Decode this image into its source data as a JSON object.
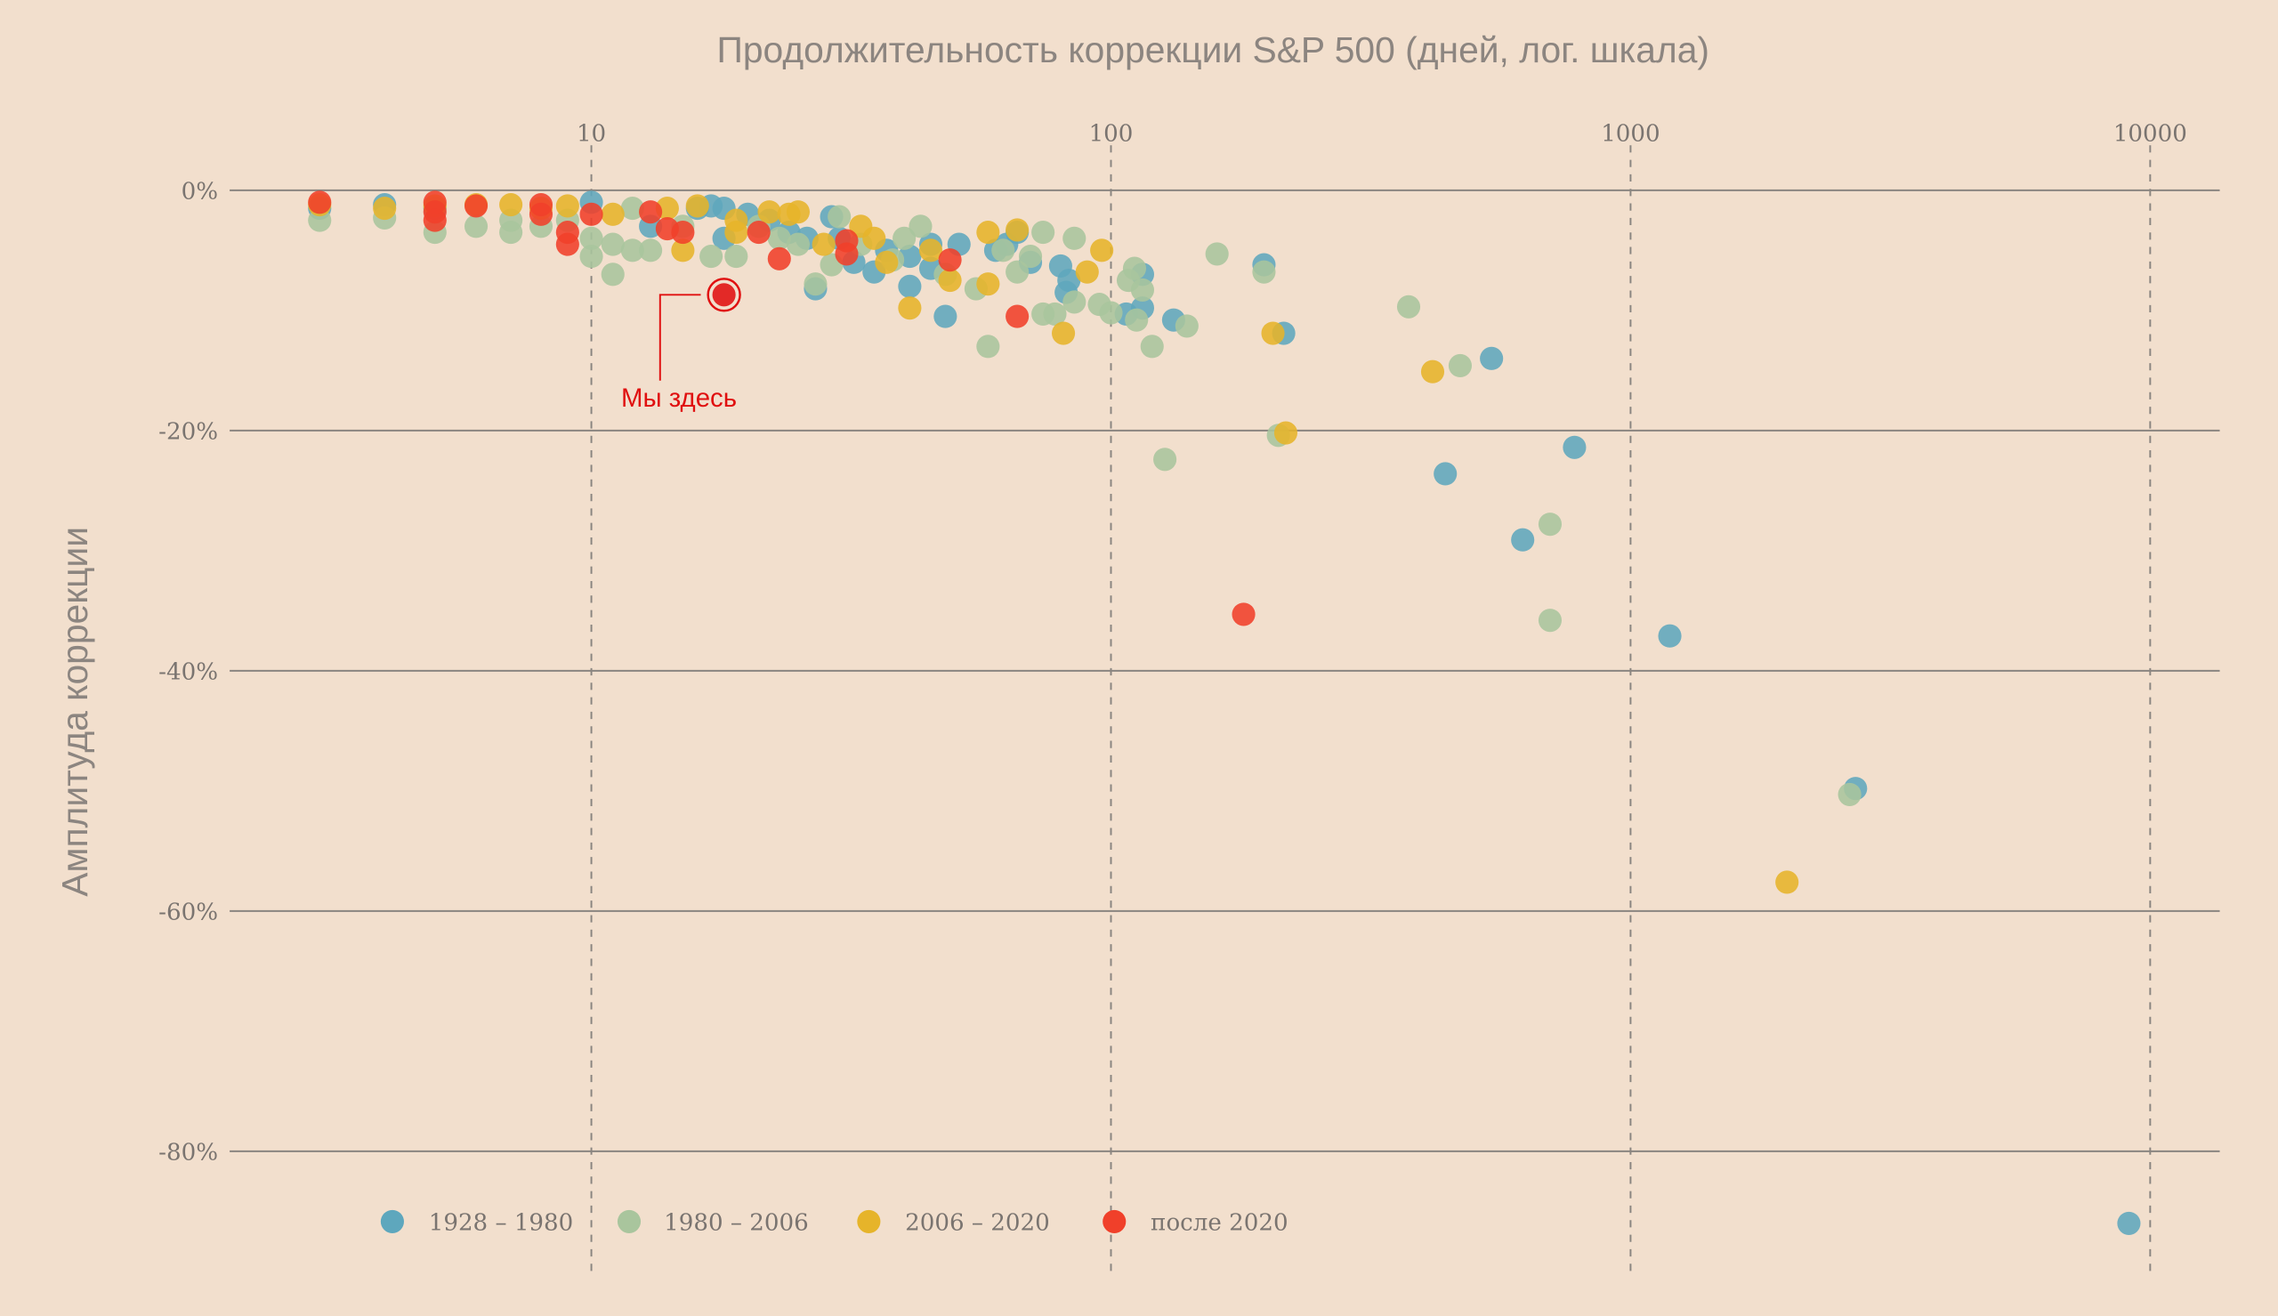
{
  "chart_data": {
    "type": "scatter",
    "title": "Продолжительность коррекции S&P 500 (дней, лог. шкала)",
    "xlabel": "Продолжительность коррекции S&P 500 (дней, лог. шкала)",
    "ylabel": "Амплитуда коррекции",
    "xscale": "log",
    "xlim": [
      2.3,
      13000
    ],
    "ylim": [
      -91,
      5
    ],
    "xticks": [
      10,
      100,
      1000,
      10000
    ],
    "xtick_labels": [
      "10",
      "100",
      "1000",
      "10000"
    ],
    "yticks": [
      0,
      -20,
      -40,
      -60,
      -80
    ],
    "ytick_labels": [
      "0%",
      "-20%",
      "-40%",
      "-60%",
      "-80%"
    ],
    "grid": true,
    "legend_position": "bottom-left",
    "series": [
      {
        "name": "1928 – 1980",
        "color": "#5ea7bd",
        "points": [
          [
            3,
            -1.5
          ],
          [
            4,
            -1.2
          ],
          [
            5,
            -1.5
          ],
          [
            10,
            -1
          ],
          [
            13,
            -3
          ],
          [
            16,
            -1.5
          ],
          [
            17,
            -1.3
          ],
          [
            18,
            -1.5
          ],
          [
            18,
            -4
          ],
          [
            20,
            -2
          ],
          [
            22,
            -2.5
          ],
          [
            24,
            -3.5
          ],
          [
            26,
            -4
          ],
          [
            27,
            -8.2
          ],
          [
            29,
            -2.2
          ],
          [
            30,
            -4
          ],
          [
            32,
            -6
          ],
          [
            35,
            -6.8
          ],
          [
            37,
            -5
          ],
          [
            41,
            -8
          ],
          [
            41,
            -5.5
          ],
          [
            45,
            -4.5
          ],
          [
            45,
            -6.5
          ],
          [
            48,
            -10.5
          ],
          [
            51,
            -4.5
          ],
          [
            60,
            -5
          ],
          [
            63,
            -4.5
          ],
          [
            66,
            -3.5
          ],
          [
            70,
            -6
          ],
          [
            80,
            -6.3
          ],
          [
            82,
            -8.5
          ],
          [
            83,
            -7.5
          ],
          [
            107,
            -10.3
          ],
          [
            115,
            -9.8
          ],
          [
            115,
            -7
          ],
          [
            132,
            -10.8
          ],
          [
            197,
            -6.2
          ],
          [
            215,
            -11.9
          ],
          [
            440,
            -23.6
          ],
          [
            540,
            -14
          ],
          [
            620,
            -29.1
          ],
          [
            780,
            -21.4
          ],
          [
            1190,
            -37.1
          ],
          [
            2710,
            -49.8
          ],
          [
            9100,
            -86
          ]
        ]
      },
      {
        "name": "1980 – 2006",
        "color": "#a9c59d",
        "points": [
          [
            3,
            -2.5
          ],
          [
            4,
            -2.3
          ],
          [
            5,
            -3.5
          ],
          [
            6,
            -3
          ],
          [
            7,
            -3.5
          ],
          [
            7,
            -2.5
          ],
          [
            8,
            -3
          ],
          [
            9,
            -2.5
          ],
          [
            10,
            -5.5
          ],
          [
            10,
            -4
          ],
          [
            11,
            -7
          ],
          [
            11,
            -4.5
          ],
          [
            12,
            -1.5
          ],
          [
            12,
            -5
          ],
          [
            13,
            -5
          ],
          [
            15,
            -3
          ],
          [
            17,
            -5.5
          ],
          [
            19,
            -5.5
          ],
          [
            21,
            -3
          ],
          [
            23,
            -4
          ],
          [
            25,
            -4.5
          ],
          [
            27,
            -7.8
          ],
          [
            29,
            -6.2
          ],
          [
            30,
            -2.2
          ],
          [
            33,
            -4.5
          ],
          [
            38,
            -5.8
          ],
          [
            40,
            -4
          ],
          [
            43,
            -3
          ],
          [
            48,
            -7
          ],
          [
            55,
            -8.2
          ],
          [
            58,
            -13
          ],
          [
            62,
            -5
          ],
          [
            66,
            -6.8
          ],
          [
            70,
            -5.5
          ],
          [
            74,
            -3.5
          ],
          [
            74,
            -10.3
          ],
          [
            78,
            -10.3
          ],
          [
            85,
            -9.3
          ],
          [
            85,
            -4
          ],
          [
            95,
            -9.5
          ],
          [
            100,
            -10.2
          ],
          [
            108,
            -7.5
          ],
          [
            111,
            -6.5
          ],
          [
            112,
            -10.8
          ],
          [
            115,
            -8.3
          ],
          [
            120,
            -13
          ],
          [
            127,
            -22.4
          ],
          [
            140,
            -11.3
          ],
          [
            160,
            -5.3
          ],
          [
            197,
            -6.8
          ],
          [
            210,
            -20.4
          ],
          [
            374,
            -9.7
          ],
          [
            470,
            -14.6
          ],
          [
            700,
            -27.8
          ],
          [
            700,
            -35.8
          ],
          [
            2640,
            -50.3
          ]
        ]
      },
      {
        "name": "2006 – 2020",
        "color": "#e6b42a",
        "points": [
          [
            3,
            -1.2
          ],
          [
            4,
            -1.5
          ],
          [
            5,
            -1.3
          ],
          [
            6,
            -1.2
          ],
          [
            7,
            -1.2
          ],
          [
            8,
            -1.5
          ],
          [
            9,
            -1.3
          ],
          [
            11,
            -2
          ],
          [
            14,
            -1.5
          ],
          [
            15,
            -5
          ],
          [
            16,
            -1.3
          ],
          [
            19,
            -2.5
          ],
          [
            19,
            -3.5
          ],
          [
            22,
            -1.8
          ],
          [
            24,
            -2
          ],
          [
            25,
            -1.8
          ],
          [
            28,
            -4.5
          ],
          [
            33,
            -3
          ],
          [
            35,
            -4
          ],
          [
            37,
            -6
          ],
          [
            41,
            -9.8
          ],
          [
            45,
            -5
          ],
          [
            49,
            -7.5
          ],
          [
            58,
            -3.5
          ],
          [
            58,
            -7.8
          ],
          [
            66,
            -3.3
          ],
          [
            81,
            -11.9
          ],
          [
            90,
            -6.8
          ],
          [
            96,
            -5
          ],
          [
            205,
            -11.9
          ],
          [
            217,
            -20.2
          ],
          [
            416,
            -15.1
          ],
          [
            2000,
            -57.6
          ]
        ]
      },
      {
        "name": "после 2020",
        "color": "#f0402a",
        "points": [
          [
            3,
            -1
          ],
          [
            5,
            -1
          ],
          [
            5,
            -2.5
          ],
          [
            5,
            -1.8
          ],
          [
            6,
            -1.3
          ],
          [
            8,
            -1.2
          ],
          [
            8,
            -2
          ],
          [
            9,
            -3.5
          ],
          [
            9,
            -4.5
          ],
          [
            10,
            -2
          ],
          [
            13,
            -1.8
          ],
          [
            14,
            -3.2
          ],
          [
            15,
            -3.5
          ],
          [
            21,
            -3.5
          ],
          [
            23,
            -5.7
          ],
          [
            31,
            -4.2
          ],
          [
            31,
            -5.3
          ],
          [
            49,
            -5.8
          ],
          [
            66,
            -10.5
          ],
          [
            180,
            -35.3
          ]
        ]
      }
    ],
    "annotations": [
      {
        "text": "Мы здесь",
        "point": [
          18,
          -8.7
        ],
        "color": "#e01010"
      }
    ]
  }
}
